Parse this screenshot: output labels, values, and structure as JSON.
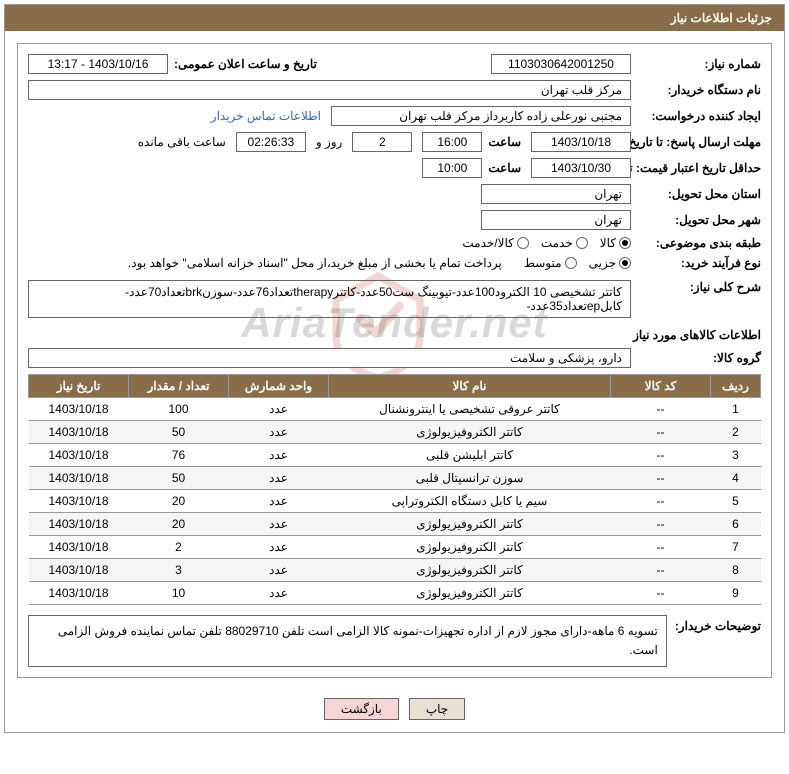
{
  "header": {
    "title": "جزئیات اطلاعات نیاز"
  },
  "fields": {
    "need_number_label": "شماره نیاز:",
    "need_number": "1103030642001250",
    "announce_date_label": "تاریخ و ساعت اعلان عمومی:",
    "announce_date": "1403/10/16 - 13:17",
    "buyer_org_label": "نام دستگاه خریدار:",
    "buyer_org": "مرکز قلب تهران",
    "requester_label": "ایجاد کننده درخواست:",
    "requester": "مجتبی نورعلی زاده کاربرداز مرکز قلب تهران",
    "buyer_contact_link": "اطلاعات تماس خریدار",
    "deadline_label": "مهلت ارسال پاسخ:",
    "deadline_date": "1403/10/18",
    "time_label": "ساعت",
    "deadline_time": "16:00",
    "days_remaining": "2",
    "days_and_label": "روز و",
    "countdown": "02:26:33",
    "remaining_label": "ساعت باقی مانده",
    "until_date_label": "تا تاریخ:",
    "validity_label": "حداقل تاریخ اعتبار قیمت:",
    "validity_date": "1403/10/30",
    "validity_time": "10:00",
    "province_label": "استان محل تحویل:",
    "province": "تهران",
    "city_label": "شهر محل تحویل:",
    "city": "تهران",
    "category_label": "طبقه بندی موضوعی:",
    "cat_goods": "کالا",
    "cat_service": "خدمت",
    "cat_goods_service": "کالا/خدمت",
    "purchase_type_label": "نوع فرآیند خرید:",
    "pt_partial": "جزیی",
    "pt_medium": "متوسط",
    "payment_note": "پرداخت تمام یا بخشی از مبلغ خرید،از محل \"اسناد خزانه اسلامی\" خواهد بود.",
    "need_desc_label": "شرح کلی نیاز:",
    "need_desc": "کاتتر تشخیصی 10 الکترود100عدد-تیوبینگ ست50عدد-کاتترtherapyتعداد76عدد-سوزنbrkتعداد70عدد-کابلepتعداد35عدد-",
    "goods_info_title": "اطلاعات کالاهای مورد نیاز",
    "goods_group_label": "گروه کالا:",
    "goods_group": "دارو، پزشکی و سلامت",
    "buyer_notes_label": "توضیحات خریدار:",
    "buyer_notes": "تسویه 6 ماهه-دارای مجوز لازم از اداره تجهیزات-نمونه کالا الزامی است تلفن 88029710 تلفن تماس نماینده فروش الزامی است."
  },
  "table": {
    "headers": {
      "row": "ردیف",
      "code": "کد کالا",
      "name": "نام کالا",
      "unit": "واحد شمارش",
      "qty": "تعداد / مقدار",
      "date": "تاریخ نیاز"
    },
    "rows": [
      {
        "row": "1",
        "code": "--",
        "name": "کاتتر عروقی تشخیصی یا اینترونشنال",
        "unit": "عدد",
        "qty": "100",
        "date": "1403/10/18"
      },
      {
        "row": "2",
        "code": "--",
        "name": "کاتتر الکتروفیزیولوژی",
        "unit": "عدد",
        "qty": "50",
        "date": "1403/10/18"
      },
      {
        "row": "3",
        "code": "--",
        "name": "کاتتر ابلیشن قلبی",
        "unit": "عدد",
        "qty": "76",
        "date": "1403/10/18"
      },
      {
        "row": "4",
        "code": "--",
        "name": "سوزن ترانسپتال قلبی",
        "unit": "عدد",
        "qty": "50",
        "date": "1403/10/18"
      },
      {
        "row": "5",
        "code": "--",
        "name": "سیم یا کابل دستگاه الکتروتراپی",
        "unit": "عدد",
        "qty": "20",
        "date": "1403/10/18"
      },
      {
        "row": "6",
        "code": "--",
        "name": "کاتتر الکتروفیزیولوژی",
        "unit": "عدد",
        "qty": "20",
        "date": "1403/10/18"
      },
      {
        "row": "7",
        "code": "--",
        "name": "کاتتر الکتروفیزیولوژی",
        "unit": "عدد",
        "qty": "2",
        "date": "1403/10/18"
      },
      {
        "row": "8",
        "code": "--",
        "name": "کاتتر الکتروفیزیولوژی",
        "unit": "عدد",
        "qty": "3",
        "date": "1403/10/18"
      },
      {
        "row": "9",
        "code": "--",
        "name": "کاتتر الکتروفیزیولوژی",
        "unit": "عدد",
        "qty": "10",
        "date": "1403/10/18"
      }
    ]
  },
  "buttons": {
    "print": "چاپ",
    "back": "بازگشت"
  },
  "watermark": {
    "text": "AriaTender.net"
  },
  "colors": {
    "header_bg": "#886d48",
    "header_fg": "#ffffff",
    "border": "#666666"
  }
}
